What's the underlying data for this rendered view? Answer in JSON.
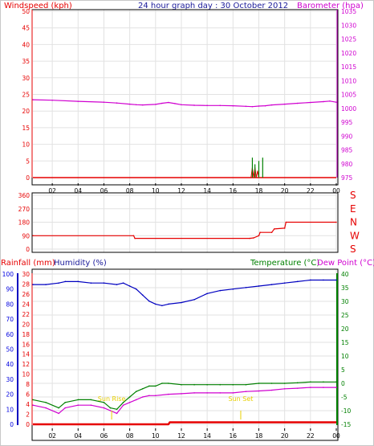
{
  "header": {
    "windspeed_label": "Windspeed (kph)",
    "title": "24 hour graph day : 30 October 2012",
    "barometer_label": "Barometer (hpa)"
  },
  "bottom_header": {
    "rainfall_label": "Rainfall (mm)",
    "humidity_label": "Humidity (%)",
    "temperature_label": "Temperature (°C)",
    "dewpoint_label": "Dew Point (°C)"
  },
  "time_ticks": [
    "02",
    "04",
    "06",
    "08",
    "10",
    "12",
    "14",
    "16",
    "18",
    "20",
    "22",
    "00"
  ],
  "direction_letters": [
    "S",
    "E",
    "N",
    "W",
    "S"
  ],
  "colors": {
    "windspeed": "#e60000",
    "gust": "#008000",
    "barometer": "#d000d0",
    "wind_direction": "#e60000",
    "humidity": "#0000c0",
    "temperature": "#008000",
    "dewpoint": "#d000d0",
    "rainfall": "#e60000",
    "sun_marker": "#e8d000"
  },
  "chart_data": [
    {
      "type": "line",
      "series_names": [
        "Windspeed",
        "Barometer"
      ],
      "x_ticks": [
        "02",
        "04",
        "06",
        "08",
        "10",
        "12",
        "14",
        "16",
        "18",
        "20",
        "22",
        "00"
      ],
      "y_left": {
        "label": "Windspeed (kph)",
        "ylim": [
          0,
          50
        ],
        "ticks": [
          0,
          5,
          10,
          15,
          20,
          25,
          30,
          35,
          40,
          45,
          50
        ]
      },
      "y_right": {
        "label": "Barometer (hpa)",
        "ylim": [
          975,
          1035
        ],
        "ticks": [
          975,
          980,
          985,
          990,
          995,
          1000,
          1005,
          1010,
          1015,
          1020,
          1025,
          1030,
          1035
        ]
      },
      "barometer": {
        "x": [
          0.5,
          2,
          4,
          6,
          7,
          8,
          8.5,
          9,
          10,
          10.5,
          11,
          11.5,
          12,
          13,
          14,
          15,
          16,
          17,
          17.5,
          18,
          18.5,
          19,
          20,
          21,
          22,
          23,
          23.5,
          24
        ],
        "y": [
          1003.1,
          1002.9,
          1002.5,
          1002.2,
          1001.9,
          1001.5,
          1001.3,
          1001.2,
          1001.4,
          1001.8,
          1002.1,
          1001.7,
          1001.3,
          1001.1,
          1001.0,
          1001.0,
          1000.9,
          1000.7,
          1000.6,
          1000.8,
          1000.9,
          1001.2,
          1001.5,
          1001.8,
          1002.1,
          1002.4,
          1002.6,
          1002.2
        ]
      },
      "windspeed": {
        "x": [
          0.5,
          17.4,
          17.5,
          17.6,
          17.7,
          17.8,
          17.9,
          18.0,
          24
        ],
        "y": [
          0,
          0,
          3,
          0,
          3,
          0,
          2,
          0,
          0
        ]
      },
      "gust": {
        "x": [
          17.5,
          17.7,
          18.0,
          18.3
        ],
        "y": [
          6,
          4,
          5,
          6
        ]
      }
    },
    {
      "type": "line",
      "series_names": [
        "Wind direction"
      ],
      "x_ticks": [
        "02",
        "04",
        "06",
        "08",
        "10",
        "12",
        "14",
        "16",
        "18",
        "20",
        "22",
        "00"
      ],
      "y_left": {
        "ylim": [
          0,
          360
        ],
        "ticks": [
          0,
          90,
          180,
          270,
          360
        ]
      },
      "y_right_letters": [
        "S",
        "E",
        "N",
        "W",
        "S"
      ],
      "wind_direction": {
        "x": [
          0.5,
          8.3,
          8.4,
          17.3,
          17.6,
          18.0,
          18.1,
          19.0,
          19.2,
          20.0,
          20.1,
          24
        ],
        "y": [
          90,
          90,
          72,
          72,
          75,
          90,
          112,
          112,
          135,
          140,
          180,
          180
        ]
      }
    },
    {
      "type": "line",
      "series_names": [
        "Humidity",
        "Temperature",
        "Dew Point",
        "Rainfall"
      ],
      "x_ticks": [
        "02",
        "04",
        "06",
        "08",
        "10",
        "12",
        "14",
        "16",
        "18",
        "20",
        "22",
        "00"
      ],
      "y_left_humidity": {
        "label": "Humidity (%)",
        "ylim": [
          0,
          100
        ],
        "ticks": [
          0,
          10,
          20,
          30,
          40,
          50,
          60,
          70,
          80,
          90,
          100
        ]
      },
      "y_left_rainfall": {
        "label": "Rainfall (mm)",
        "ylim": [
          0,
          30
        ],
        "ticks": [
          0,
          2,
          4,
          6,
          8,
          10,
          12,
          14,
          16,
          18,
          20,
          22,
          24,
          26,
          28,
          30
        ]
      },
      "y_right": {
        "label": "Temperature (°C) Dew Point (°C)",
        "ylim": [
          -15,
          40
        ],
        "ticks": [
          -15,
          -10,
          -5,
          0,
          5,
          10,
          15,
          20,
          25,
          30,
          35,
          40
        ]
      },
      "humidity": {
        "x": [
          0.5,
          1.5,
          2.5,
          3,
          4,
          5,
          6,
          7,
          7.5,
          8,
          8.5,
          9,
          9.5,
          10,
          10.5,
          11,
          12,
          13,
          14,
          15,
          16,
          17,
          18,
          19,
          20,
          21,
          22,
          23,
          24
        ],
        "y": [
          93,
          93,
          94,
          95,
          95,
          94,
          94,
          93,
          94,
          92,
          90,
          86,
          82,
          80,
          79,
          80,
          81,
          83,
          87,
          89,
          90,
          91,
          92,
          93,
          94,
          95,
          96,
          96,
          96
        ]
      },
      "temperature": {
        "x": [
          0.5,
          1.5,
          2.5,
          3,
          4,
          5,
          6,
          6.5,
          7,
          7.5,
          8,
          8.5,
          9,
          9.5,
          10,
          10.5,
          11,
          12,
          13,
          14,
          15,
          16,
          17,
          18,
          19,
          20,
          21,
          22,
          23,
          24
        ],
        "y": [
          -6,
          -7,
          -9,
          -7,
          -6,
          -6,
          -7,
          -9,
          -9.5,
          -7,
          -5,
          -3,
          -2,
          -1,
          -1,
          0,
          0,
          -0.5,
          -0.5,
          -0.5,
          -0.5,
          -0.5,
          -0.5,
          0,
          0,
          0,
          0.2,
          0.5,
          0.5,
          0.5
        ]
      },
      "dewpoint": {
        "x": [
          0.5,
          1.5,
          2.5,
          3,
          4,
          5,
          6,
          6.5,
          7,
          7.5,
          8,
          8.5,
          9,
          9.5,
          10,
          11,
          12,
          13,
          14,
          15,
          16,
          17,
          18,
          19,
          20,
          21,
          22,
          23,
          24
        ],
        "y": [
          -8,
          -9,
          -11,
          -9,
          -8,
          -8,
          -9,
          -10,
          -11,
          -8,
          -7,
          -6,
          -5,
          -4.5,
          -4.5,
          -4,
          -3.8,
          -3.5,
          -3.5,
          -3.5,
          -3.5,
          -3,
          -2.8,
          -2.5,
          -2,
          -1.8,
          -1.5,
          -1.5,
          -1.5
        ]
      },
      "rainfall": {
        "x": [
          0.5,
          11.0,
          11.1,
          24
        ],
        "y": [
          0,
          0,
          0.4,
          0.4
        ]
      },
      "annotations": [
        {
          "text": "Sun Rise",
          "x": 6.6
        },
        {
          "text": "Sun Set",
          "x": 16.6
        }
      ]
    }
  ]
}
